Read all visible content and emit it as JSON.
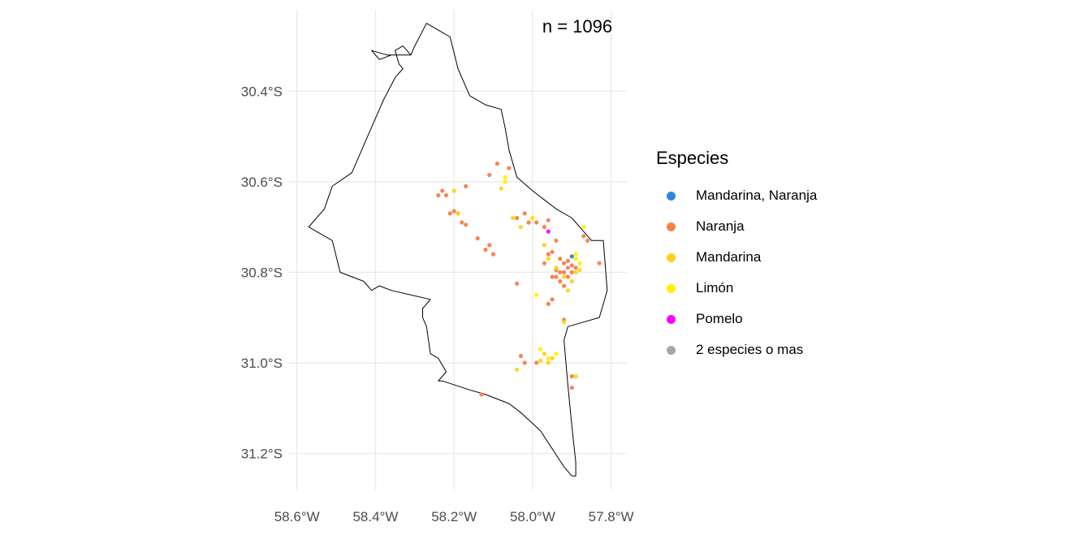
{
  "annotation": "n = 1096",
  "legend": {
    "title": "Especies",
    "items": [
      {
        "label": "Mandarina, Naranja",
        "color": "#2E86DE"
      },
      {
        "label": "Naranja",
        "color": "#F5814B"
      },
      {
        "label": "Mandarina",
        "color": "#FFD21A"
      },
      {
        "label": "Limón",
        "color": "#FFF200"
      },
      {
        "label": "Pomelo",
        "color": "#FF00FF"
      },
      {
        "label": "2 especies o mas",
        "color": "#A6A6A6"
      }
    ]
  },
  "chart_data": {
    "type": "scatter",
    "x_ticks": [
      -58.6,
      -58.4,
      -58.2,
      -58.0,
      -57.8
    ],
    "x_tick_labels": [
      "58.6°W",
      "58.4°W",
      "58.2°W",
      "58.0°W",
      "57.8°W"
    ],
    "y_ticks": [
      -30.4,
      -30.6,
      -30.8,
      -31.0,
      -31.2
    ],
    "y_tick_labels": [
      "30.4°S",
      "30.6°S",
      "30.8°S",
      "31.0°S",
      "31.2°S"
    ],
    "xlim": [
      -58.62,
      -57.76
    ],
    "ylim": [
      -31.28,
      -30.22
    ],
    "grid": true,
    "legend_position": "right",
    "boundary": [
      [
        -58.27,
        -30.25
      ],
      [
        -58.23,
        -30.27
      ],
      [
        -58.21,
        -30.28
      ],
      [
        -58.19,
        -30.35
      ],
      [
        -58.16,
        -30.41
      ],
      [
        -58.12,
        -30.43
      ],
      [
        -58.08,
        -30.44
      ],
      [
        -58.07,
        -30.48
      ],
      [
        -58.06,
        -30.53
      ],
      [
        -58.04,
        -30.59
      ],
      [
        -58.0,
        -30.62
      ],
      [
        -57.97,
        -30.64
      ],
      [
        -57.94,
        -30.66
      ],
      [
        -57.9,
        -30.68
      ],
      [
        -57.87,
        -30.71
      ],
      [
        -57.85,
        -30.73
      ],
      [
        -57.82,
        -30.73
      ],
      [
        -57.81,
        -30.84
      ],
      [
        -57.82,
        -30.87
      ],
      [
        -57.83,
        -30.9
      ],
      [
        -57.87,
        -30.91
      ],
      [
        -57.91,
        -30.92
      ],
      [
        -57.92,
        -30.95
      ],
      [
        -57.91,
        -31.05
      ],
      [
        -57.9,
        -31.14
      ],
      [
        -57.89,
        -31.22
      ],
      [
        -57.89,
        -31.25
      ],
      [
        -57.9,
        -31.25
      ],
      [
        -57.92,
        -31.23
      ],
      [
        -57.95,
        -31.19
      ],
      [
        -57.98,
        -31.15
      ],
      [
        -58.03,
        -31.11
      ],
      [
        -58.06,
        -31.09
      ],
      [
        -58.09,
        -31.08
      ],
      [
        -58.12,
        -31.07
      ],
      [
        -58.16,
        -31.06
      ],
      [
        -58.23,
        -31.04
      ],
      [
        -58.24,
        -31.04
      ],
      [
        -58.22,
        -31.02
      ],
      [
        -58.24,
        -30.99
      ],
      [
        -58.26,
        -30.98
      ],
      [
        -58.27,
        -30.92
      ],
      [
        -58.28,
        -30.9
      ],
      [
        -58.28,
        -30.88
      ],
      [
        -58.26,
        -30.86
      ],
      [
        -58.36,
        -30.84
      ],
      [
        -58.39,
        -30.83
      ],
      [
        -58.41,
        -30.84
      ],
      [
        -58.43,
        -30.82
      ],
      [
        -58.49,
        -30.8
      ],
      [
        -58.51,
        -30.73
      ],
      [
        -58.57,
        -30.7
      ],
      [
        -58.53,
        -30.66
      ],
      [
        -58.51,
        -30.61
      ],
      [
        -58.46,
        -30.58
      ],
      [
        -58.42,
        -30.5
      ],
      [
        -58.38,
        -30.42
      ],
      [
        -58.35,
        -30.37
      ],
      [
        -58.33,
        -30.35
      ],
      [
        -58.34,
        -30.34
      ],
      [
        -58.35,
        -30.31
      ],
      [
        -58.33,
        -30.3
      ],
      [
        -58.31,
        -30.32
      ],
      [
        -58.36,
        -30.32
      ],
      [
        -58.39,
        -30.33
      ],
      [
        -58.41,
        -30.31
      ],
      [
        -58.37,
        -30.32
      ],
      [
        -58.33,
        -30.32
      ],
      [
        -58.31,
        -30.32
      ],
      [
        -58.3,
        -30.3
      ],
      [
        -58.27,
        -30.25
      ]
    ],
    "series": [
      {
        "name": "Mandarina, Naranja",
        "color": "#2E86DE",
        "points": [
          [
            -57.9,
            -30.765
          ]
        ]
      },
      {
        "name": "Naranja",
        "color": "#F5814B",
        "points": [
          [
            -58.23,
            -30.62
          ],
          [
            -58.22,
            -30.63
          ],
          [
            -58.24,
            -30.63
          ],
          [
            -58.17,
            -30.61
          ],
          [
            -58.2,
            -30.665
          ],
          [
            -58.19,
            -30.67
          ],
          [
            -58.21,
            -30.67
          ],
          [
            -58.18,
            -30.69
          ],
          [
            -58.17,
            -30.695
          ],
          [
            -58.14,
            -30.725
          ],
          [
            -58.11,
            -30.585
          ],
          [
            -58.09,
            -30.56
          ],
          [
            -58.11,
            -30.74
          ],
          [
            -58.1,
            -30.76
          ],
          [
            -58.12,
            -30.75
          ],
          [
            -58.04,
            -30.68
          ],
          [
            -58.02,
            -30.67
          ],
          [
            -58.01,
            -30.69
          ],
          [
            -58.0,
            -30.68
          ],
          [
            -57.99,
            -30.69
          ],
          [
            -57.97,
            -30.7
          ],
          [
            -57.96,
            -30.685
          ],
          [
            -57.94,
            -30.73
          ],
          [
            -57.95,
            -30.755
          ],
          [
            -57.93,
            -30.77
          ],
          [
            -57.92,
            -30.78
          ],
          [
            -57.91,
            -30.79
          ],
          [
            -57.93,
            -30.8
          ],
          [
            -57.94,
            -30.81
          ],
          [
            -57.92,
            -30.8
          ],
          [
            -57.9,
            -30.8
          ],
          [
            -57.91,
            -30.81
          ],
          [
            -57.93,
            -30.82
          ],
          [
            -57.89,
            -30.79
          ],
          [
            -57.92,
            -30.83
          ],
          [
            -57.91,
            -30.775
          ],
          [
            -57.9,
            -30.785
          ],
          [
            -57.94,
            -30.795
          ],
          [
            -57.96,
            -30.76
          ],
          [
            -57.97,
            -30.78
          ],
          [
            -57.87,
            -30.72
          ],
          [
            -57.86,
            -30.73
          ],
          [
            -57.83,
            -30.78
          ],
          [
            -57.95,
            -30.86
          ],
          [
            -57.96,
            -30.87
          ],
          [
            -57.92,
            -30.905
          ],
          [
            -58.04,
            -30.825
          ],
          [
            -58.03,
            -30.985
          ],
          [
            -58.02,
            -31.0
          ],
          [
            -57.99,
            -31.0
          ],
          [
            -57.9,
            -31.03
          ],
          [
            -57.9,
            -31.055
          ],
          [
            -58.13,
            -31.07
          ],
          [
            -58.06,
            -30.57
          ],
          [
            -57.95,
            -30.81
          ]
        ]
      },
      {
        "name": "Mandarina",
        "color": "#FFD21A",
        "points": [
          [
            -58.2,
            -30.62
          ],
          [
            -58.19,
            -30.67
          ],
          [
            -58.08,
            -30.615
          ],
          [
            -58.05,
            -30.68
          ],
          [
            -58.03,
            -30.7
          ],
          [
            -57.96,
            -30.77
          ],
          [
            -57.92,
            -30.81
          ],
          [
            -57.9,
            -30.82
          ],
          [
            -57.89,
            -30.8
          ],
          [
            -57.91,
            -30.84
          ],
          [
            -57.94,
            -30.79
          ],
          [
            -57.97,
            -30.74
          ],
          [
            -57.92,
            -30.91
          ],
          [
            -57.97,
            -30.98
          ],
          [
            -57.96,
            -31.0
          ],
          [
            -57.95,
            -30.99
          ],
          [
            -57.98,
            -30.995
          ],
          [
            -57.89,
            -31.03
          ],
          [
            -58.04,
            -31.015
          ],
          [
            -57.88,
            -30.795
          ]
        ]
      },
      {
        "name": "Limón",
        "color": "#FFF200",
        "points": [
          [
            -58.07,
            -30.59
          ],
          [
            -58.07,
            -30.6
          ],
          [
            -57.87,
            -30.7
          ],
          [
            -57.89,
            -30.77
          ],
          [
            -57.88,
            -30.78
          ],
          [
            -57.99,
            -30.85
          ],
          [
            -57.98,
            -30.97
          ],
          [
            -57.94,
            -30.98
          ],
          [
            -57.96,
            -30.99
          ],
          [
            -57.89,
            -30.76
          ],
          [
            -58.0,
            -30.68
          ]
        ]
      },
      {
        "name": "Pomelo",
        "color": "#FF00FF",
        "points": [
          [
            -57.96,
            -30.71
          ]
        ]
      },
      {
        "name": "2 especies o mas",
        "color": "#A6A6A6",
        "points": []
      }
    ]
  }
}
